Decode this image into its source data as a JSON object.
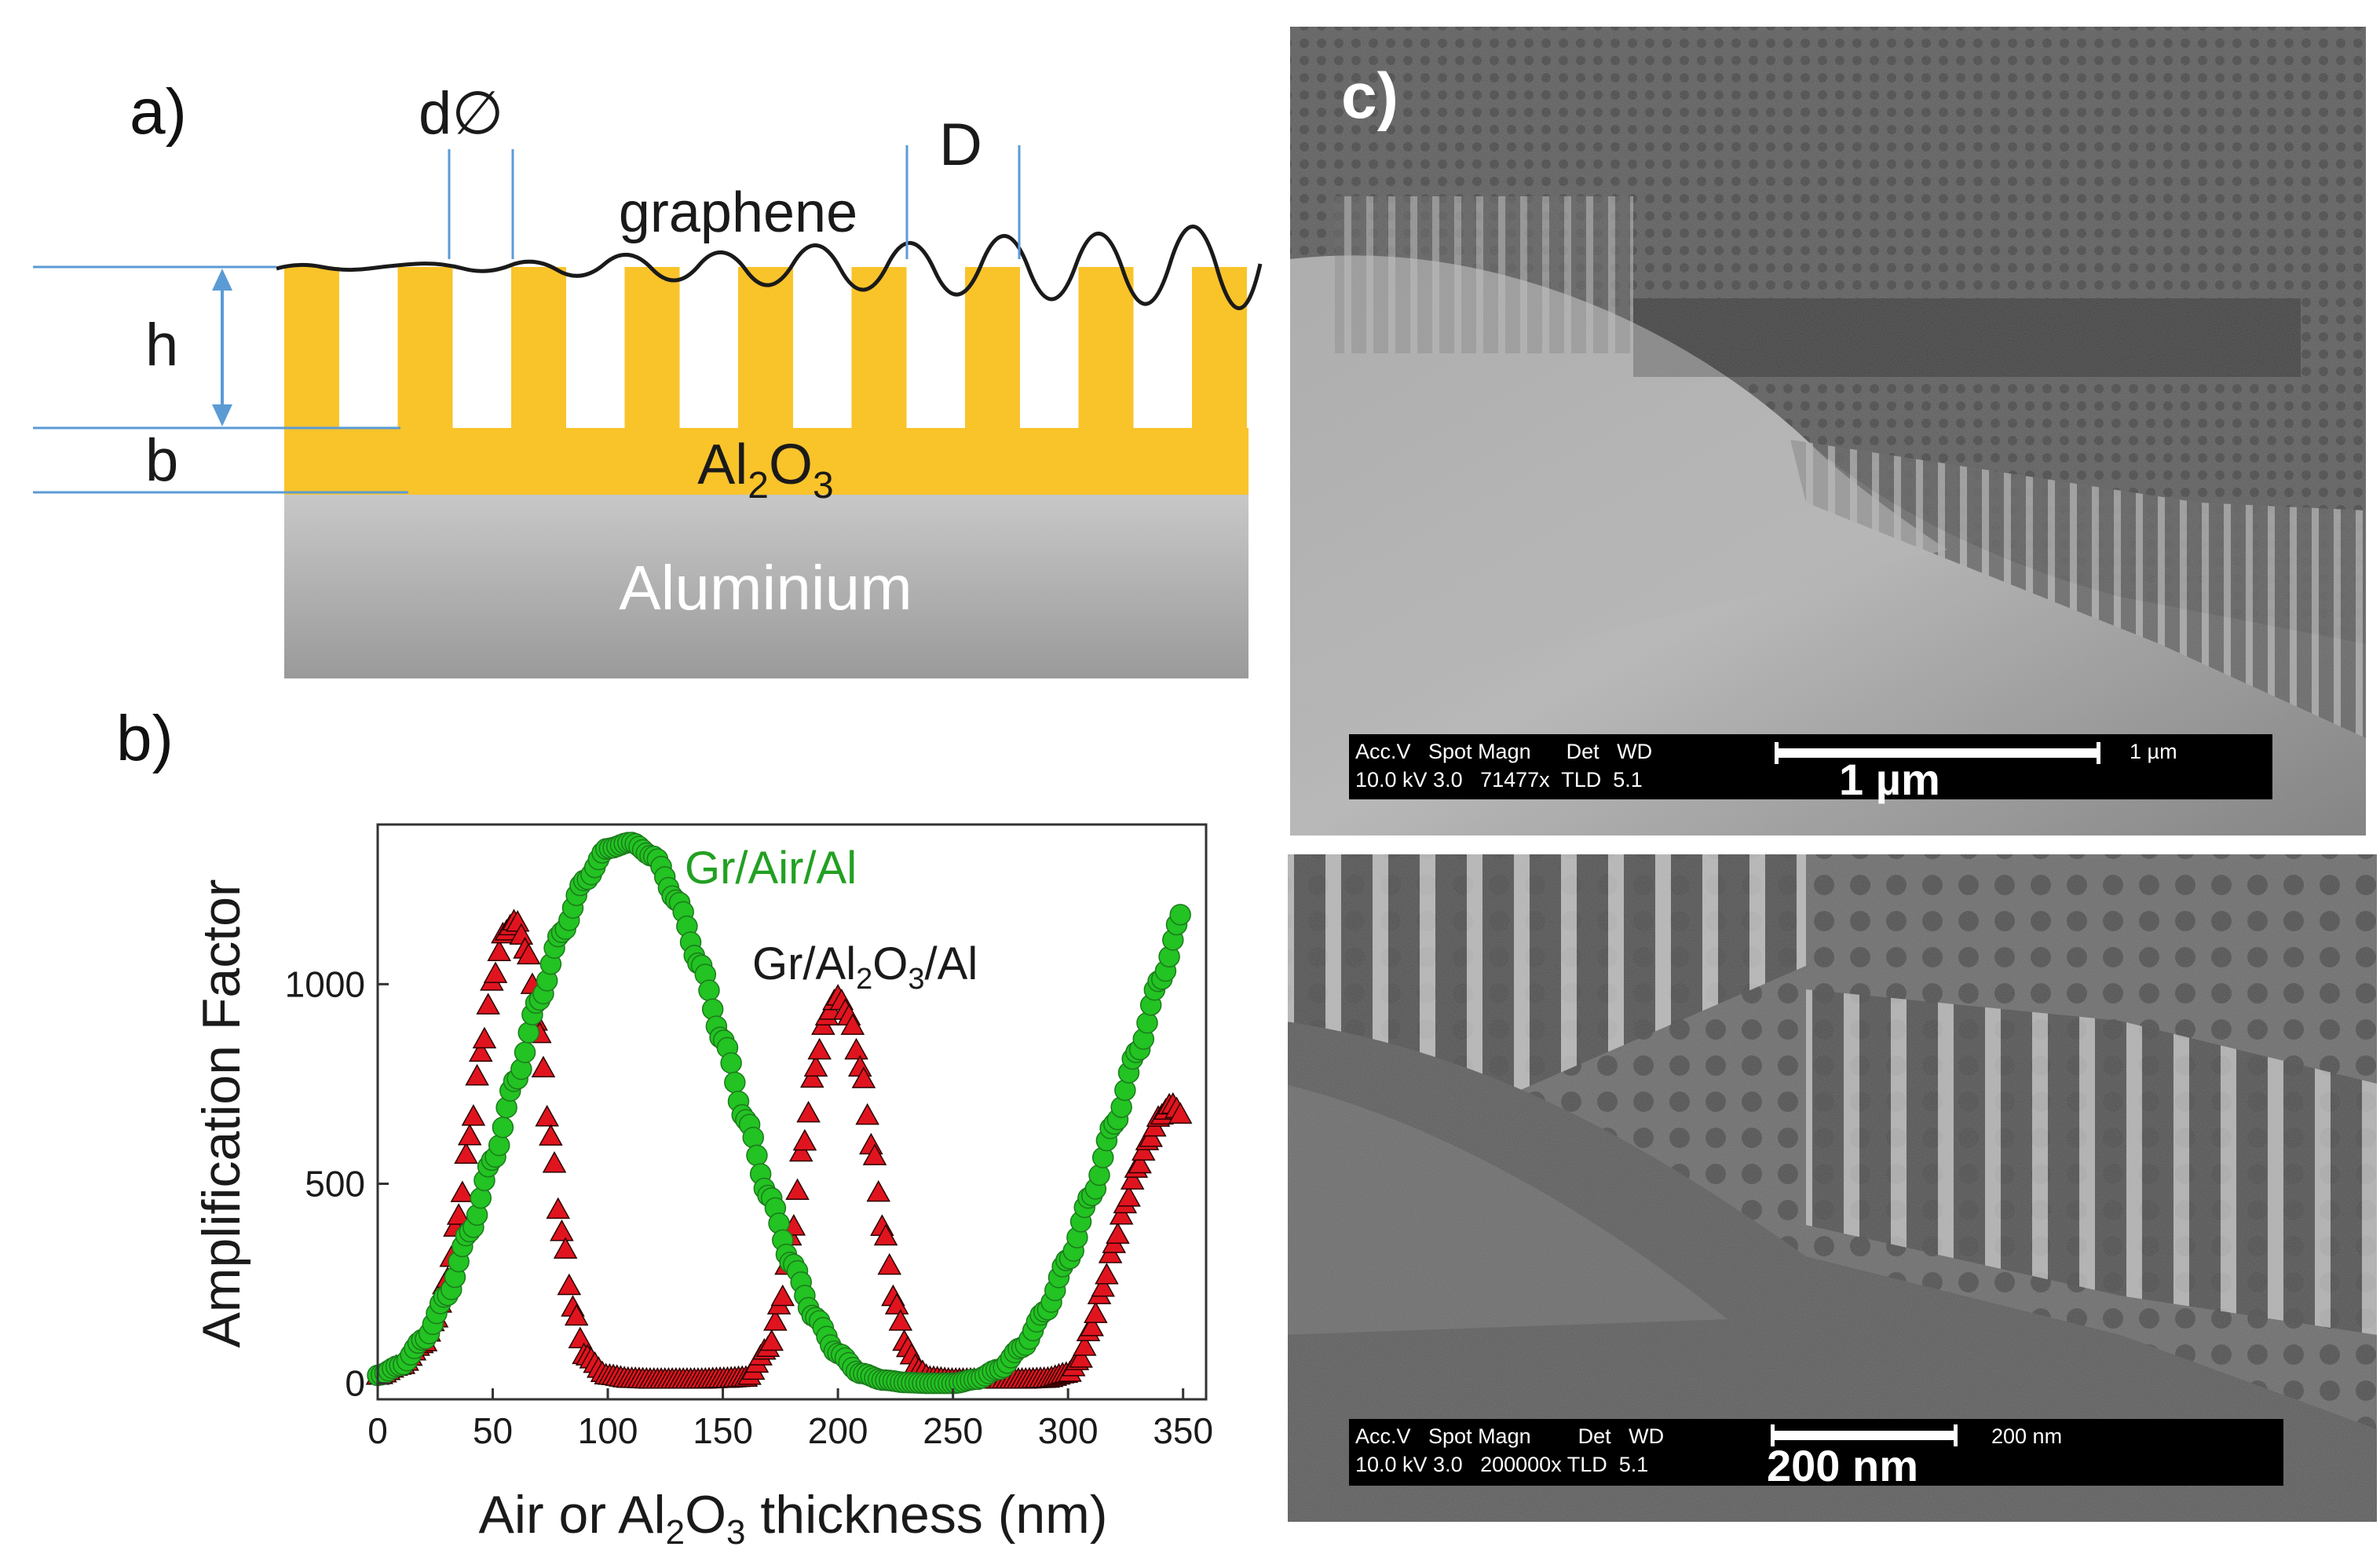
{
  "panel_a": {
    "label": "a)",
    "labels": {
      "d": "d∅",
      "D": "D",
      "graphene": "graphene",
      "h": "h",
      "b": "b",
      "al2o3_main": "Al",
      "al2o3_sub2": "2",
      "al2o3_o": "O",
      "al2o3_sub3": "3",
      "aluminium": "Aluminium"
    },
    "colors": {
      "alumina": "#f9c32a",
      "pore": "#ffffff",
      "aluminium_top": "#c8c8c8",
      "aluminium_bottom": "#9a9a9a",
      "guide_lines": "#5b9bd5",
      "graphene": "#1a1a1a"
    }
  },
  "panel_b": {
    "label": "b)",
    "legend_air": "Gr/Air/Al",
    "legend_alo_pre": "Gr/Al",
    "legend_alo_sub2": "2",
    "legend_alo_o": "O",
    "legend_alo_sub3": "3",
    "legend_alo_post": "/Al",
    "ylabel": "Amplification Factor",
    "xlabel_pre": "Air or Al",
    "xlabel_sub2": "2",
    "xlabel_o": "O",
    "xlabel_sub3": "3",
    "xlabel_post": " thickness (nm)"
  },
  "chart_data": {
    "type": "scatter",
    "x_ticks": [
      0,
      50,
      100,
      150,
      200,
      250,
      300,
      350
    ],
    "y_ticks": [
      0,
      500,
      1000
    ],
    "x_tick_labels": [
      "0",
      "50",
      "100",
      "150",
      "200",
      "250",
      "300",
      "350"
    ],
    "y_tick_labels": [
      "0",
      "500",
      "1000"
    ],
    "xlim": [
      0,
      360
    ],
    "ylim": [
      -40,
      1400
    ],
    "grid": false,
    "series": [
      {
        "name": "Gr/Air/Al",
        "color": "#22c322",
        "marker": "circle",
        "x": [
          0,
          10,
          20,
          30,
          40,
          50,
          60,
          70,
          80,
          90,
          100,
          110,
          120,
          130,
          140,
          150,
          160,
          170,
          180,
          190,
          200,
          210,
          220,
          230,
          240,
          250,
          260,
          270,
          280,
          290,
          300,
          310,
          320,
          330,
          340,
          350
        ],
        "y": [
          20,
          45,
          110,
          220,
          380,
          560,
          760,
          960,
          1130,
          1260,
          1340,
          1355,
          1320,
          1210,
          1050,
          860,
          660,
          470,
          300,
          165,
          75,
          25,
          8,
          2,
          0,
          0,
          10,
          35,
          90,
          180,
          310,
          470,
          650,
          830,
          1010,
          1180
        ]
      },
      {
        "name": "Gr/Al2O3/Al",
        "color": "#e0141e",
        "marker": "triangle",
        "x": [
          0,
          10,
          20,
          25,
          30,
          35,
          40,
          45,
          50,
          55,
          60,
          65,
          70,
          75,
          80,
          85,
          90,
          100,
          110,
          120,
          130,
          140,
          150,
          160,
          170,
          175,
          180,
          185,
          190,
          195,
          200,
          205,
          210,
          215,
          220,
          225,
          230,
          235,
          240,
          250,
          260,
          270,
          280,
          290,
          300,
          305,
          310,
          315,
          320,
          325,
          330,
          335,
          340,
          345,
          350
        ],
        "y": [
          20,
          45,
          100,
          160,
          260,
          420,
          620,
          830,
          1010,
          1130,
          1160,
          1080,
          880,
          620,
          380,
          190,
          70,
          20,
          12,
          10,
          10,
          10,
          12,
          15,
          90,
          200,
          380,
          600,
          790,
          920,
          970,
          920,
          790,
          590,
          380,
          200,
          90,
          35,
          15,
          10,
          10,
          10,
          10,
          12,
          25,
          60,
          140,
          240,
          350,
          450,
          540,
          610,
          670,
          700,
          670
        ]
      }
    ]
  },
  "panel_c": {
    "label": "c)",
    "top_sem": {
      "header": "Acc.V   Spot Magn      Det   WD",
      "values": "10.0 kV 3.0   71477x  TLD  5.1",
      "scale_small": "1 µm",
      "scale_big": "1 µm"
    },
    "bottom_sem": {
      "header": "Acc.V   Spot Magn        Det   WD",
      "values": "10.0 kV 3.0   200000x TLD  5.1",
      "scale_small": "200 nm",
      "scale_big": "200 nm"
    }
  }
}
